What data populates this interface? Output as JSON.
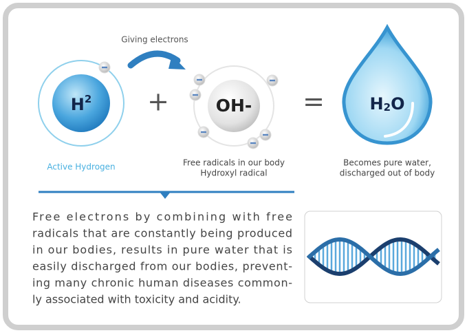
{
  "diagram": {
    "arrow_label": "Giving electrons",
    "hydrogen": {
      "symbol": "H",
      "superscript": "2",
      "caption": "Active Hydrogen"
    },
    "plus": "+",
    "hydroxyl": {
      "symbol": "OH-",
      "caption_lines": [
        "Free radicals in our body",
        "Hydroxyl radical"
      ]
    },
    "equals": "=",
    "water": {
      "symbol": "H",
      "subscript": "2",
      "symbol_end": "O",
      "caption_lines": [
        "Becomes pure water,",
        "discharged out of body"
      ]
    }
  },
  "paragraph": {
    "lines": [
      "Free electrons by combining with free",
      "radicals that are constantly being produced",
      "in our bodies, results in pure water that is",
      "easily discharged from our bodies, prevent-",
      "ing many chronic human diseases common-",
      "ly associated with toxicity and acidity."
    ]
  }
}
